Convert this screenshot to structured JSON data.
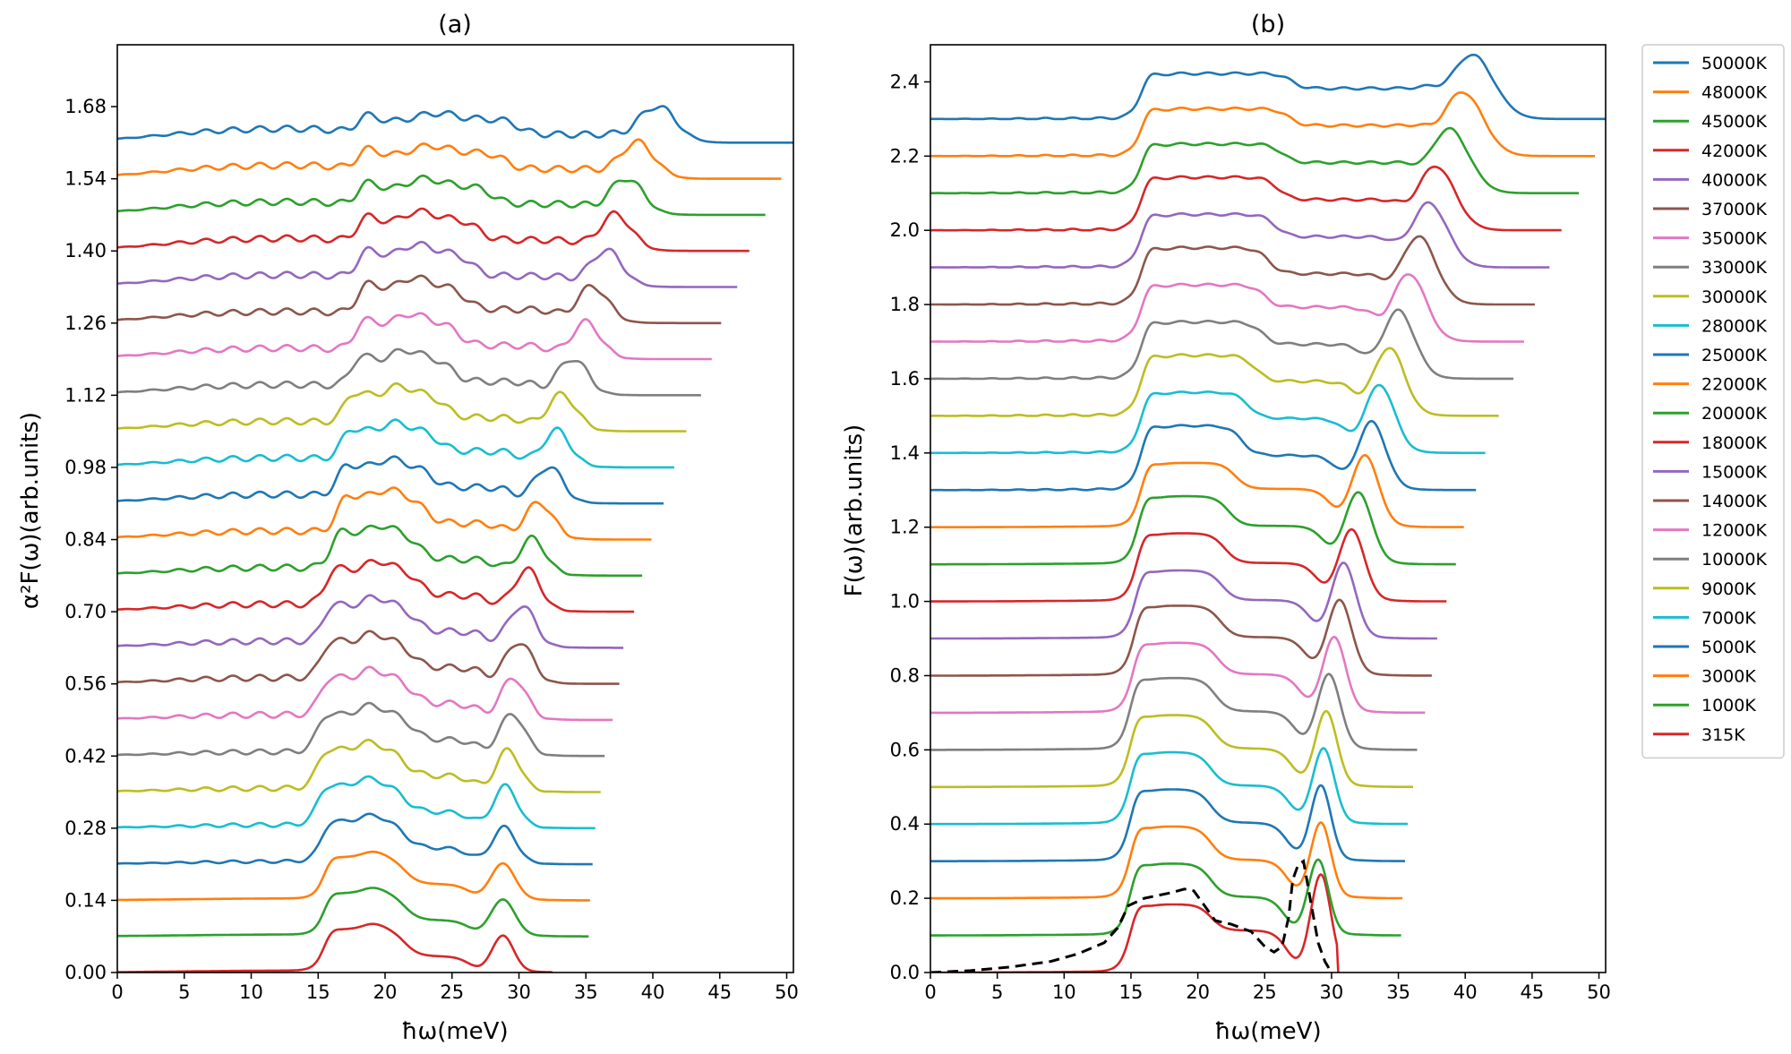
{
  "chart_data": [
    {
      "panel": "a",
      "type": "line",
      "title": "(a)",
      "xlabel": "ħω(meV)",
      "ylabel": "α²F(ω)(arb.units)",
      "xlim": [
        0,
        50.5
      ],
      "ylim": [
        0,
        1.8
      ],
      "xticks": [
        "0",
        "5",
        "10",
        "15",
        "20",
        "25",
        "30",
        "35",
        "40",
        "45",
        "50"
      ],
      "yticks": [
        "0.00",
        "0.14",
        "0.28",
        "0.42",
        "0.56",
        "0.70",
        "0.84",
        "0.98",
        "1.12",
        "1.26",
        "1.40",
        "1.54",
        "1.68"
      ],
      "offset_step": 0.07,
      "series": [
        {
          "name": "315K",
          "offset": 0.0,
          "end": 32.5,
          "peak": 28.8,
          "ph": 0.07,
          "pw": 0.8,
          "b1": 15.5,
          "b2": 21.5,
          "bh": 0.08,
          "dip": 0.03,
          "pre": 0.003,
          "fine": 0
        },
        {
          "name": "1000K",
          "offset": 0.07,
          "end": 35.2,
          "peak": 28.8,
          "ph": 0.07,
          "pw": 0.9,
          "b1": 15.5,
          "b2": 21.5,
          "bh": 0.08,
          "dip": 0.03,
          "pre": 0.003,
          "fine": 0
        },
        {
          "name": "3000K",
          "offset": 0.14,
          "end": 35.3,
          "peak": 28.8,
          "ph": 0.07,
          "pw": 0.9,
          "b1": 15.5,
          "b2": 21.5,
          "bh": 0.08,
          "dip": 0.03,
          "pre": 0.003,
          "fine": 0
        },
        {
          "name": "5000K",
          "offset": 0.21,
          "end": 35.5,
          "peak": 28.9,
          "ph": 0.07,
          "pw": 0.9,
          "b1": 15.3,
          "b2": 21.5,
          "bh": 0.08,
          "dip": 0.03,
          "pre": 0.005,
          "fine": 0.003
        },
        {
          "name": "7000K",
          "offset": 0.28,
          "end": 35.7,
          "peak": 29.0,
          "ph": 0.08,
          "pw": 0.9,
          "b1": 15.0,
          "b2": 21.5,
          "bh": 0.08,
          "dip": 0.03,
          "pre": 0.006,
          "fine": 0.004
        },
        {
          "name": "9000K",
          "offset": 0.35,
          "end": 36.1,
          "peak": 29.2,
          "ph": 0.08,
          "pw": 0.9,
          "b1": 15.0,
          "b2": 21.5,
          "bh": 0.08,
          "dip": 0.03,
          "pre": 0.007,
          "fine": 0.005
        },
        {
          "name": "10000K",
          "offset": 0.42,
          "end": 36.4,
          "peak": 29.5,
          "ph": 0.08,
          "pw": 0.95,
          "b1": 15.0,
          "b2": 22.0,
          "bh": 0.08,
          "dip": 0.03,
          "pre": 0.008,
          "fine": 0.005
        },
        {
          "name": "12000K",
          "offset": 0.49,
          "end": 37.0,
          "peak": 29.6,
          "ph": 0.08,
          "pw": 0.95,
          "b1": 15.2,
          "b2": 22.0,
          "bh": 0.08,
          "dip": 0.03,
          "pre": 0.01,
          "fine": 0.006
        },
        {
          "name": "14000K",
          "offset": 0.56,
          "end": 37.5,
          "peak": 30.0,
          "ph": 0.08,
          "pw": 1.0,
          "b1": 15.3,
          "b2": 22.0,
          "bh": 0.08,
          "dip": 0.03,
          "pre": 0.012,
          "fine": 0.006
        },
        {
          "name": "15000K",
          "offset": 0.63,
          "end": 37.8,
          "peak": 30.2,
          "ph": 0.08,
          "pw": 1.0,
          "b1": 15.4,
          "b2": 22.2,
          "bh": 0.08,
          "dip": 0.03,
          "pre": 0.013,
          "fine": 0.006
        },
        {
          "name": "18000K",
          "offset": 0.7,
          "end": 38.6,
          "peak": 30.6,
          "ph": 0.08,
          "pw": 1.0,
          "b1": 15.6,
          "b2": 22.5,
          "bh": 0.08,
          "dip": 0.03,
          "pre": 0.015,
          "fine": 0.006
        },
        {
          "name": "20000K",
          "offset": 0.77,
          "end": 39.2,
          "peak": 31.0,
          "ph": 0.07,
          "pw": 1.0,
          "b1": 16.0,
          "b2": 22.5,
          "bh": 0.08,
          "dip": 0.03,
          "pre": 0.016,
          "fine": 0.006
        },
        {
          "name": "22000K",
          "offset": 0.84,
          "end": 39.9,
          "peak": 31.5,
          "ph": 0.07,
          "pw": 1.05,
          "b1": 16.5,
          "b2": 23.0,
          "bh": 0.08,
          "dip": 0.03,
          "pre": 0.017,
          "fine": 0.006
        },
        {
          "name": "25000K",
          "offset": 0.91,
          "end": 40.8,
          "peak": 32.2,
          "ph": 0.07,
          "pw": 1.05,
          "b1": 16.5,
          "b2": 23.5,
          "bh": 0.07,
          "dip": 0.03,
          "pre": 0.018,
          "fine": 0.006
        },
        {
          "name": "28000K",
          "offset": 0.98,
          "end": 41.6,
          "peak": 32.8,
          "ph": 0.07,
          "pw": 1.05,
          "b1": 16.8,
          "b2": 24.0,
          "bh": 0.07,
          "dip": 0.03,
          "pre": 0.019,
          "fine": 0.006
        },
        {
          "name": "30000K",
          "offset": 1.05,
          "end": 42.5,
          "peak": 33.2,
          "ph": 0.07,
          "pw": 1.1,
          "b1": 17.0,
          "b2": 24.5,
          "bh": 0.07,
          "dip": 0.025,
          "pre": 0.02,
          "fine": 0.006
        },
        {
          "name": "33000K",
          "offset": 1.12,
          "end": 43.6,
          "peak": 34.0,
          "ph": 0.07,
          "pw": 1.1,
          "b1": 17.5,
          "b2": 25.0,
          "bh": 0.07,
          "dip": 0.025,
          "pre": 0.021,
          "fine": 0.006
        },
        {
          "name": "35000K",
          "offset": 1.19,
          "end": 44.4,
          "peak": 35.0,
          "ph": 0.07,
          "pw": 1.1,
          "b1": 17.8,
          "b2": 25.5,
          "bh": 0.07,
          "dip": 0.025,
          "pre": 0.022,
          "fine": 0.006
        },
        {
          "name": "37000K",
          "offset": 1.26,
          "end": 45.1,
          "peak": 35.5,
          "ph": 0.07,
          "pw": 1.15,
          "b1": 18.0,
          "b2": 26.0,
          "bh": 0.07,
          "dip": 0.025,
          "pre": 0.023,
          "fine": 0.006
        },
        {
          "name": "40000K",
          "offset": 1.33,
          "end": 46.3,
          "peak": 36.5,
          "ph": 0.07,
          "pw": 1.2,
          "b1": 18.0,
          "b2": 26.5,
          "bh": 0.065,
          "dip": 0.02,
          "pre": 0.024,
          "fine": 0.006
        },
        {
          "name": "42000K",
          "offset": 1.4,
          "end": 47.2,
          "peak": 37.2,
          "ph": 0.07,
          "pw": 1.2,
          "b1": 18.0,
          "b2": 27.0,
          "bh": 0.06,
          "dip": 0.02,
          "pre": 0.025,
          "fine": 0.006
        },
        {
          "name": "45000K",
          "offset": 1.47,
          "end": 48.4,
          "peak": 38.0,
          "ph": 0.07,
          "pw": 1.25,
          "b1": 18.0,
          "b2": 28.0,
          "bh": 0.055,
          "dip": 0.02,
          "pre": 0.026,
          "fine": 0.006
        },
        {
          "name": "48000K",
          "offset": 1.54,
          "end": 49.6,
          "peak": 38.8,
          "ph": 0.07,
          "pw": 1.3,
          "b1": 18.0,
          "b2": 29.0,
          "bh": 0.05,
          "dip": 0.018,
          "pre": 0.027,
          "fine": 0.006
        },
        {
          "name": "50000K",
          "offset": 1.61,
          "end": 50.5,
          "peak": 40.3,
          "ph": 0.07,
          "pw": 1.4,
          "b1": 18.0,
          "b2": 30.0,
          "bh": 0.045,
          "dip": 0.015,
          "pre": 0.028,
          "fine": 0.006
        }
      ]
    },
    {
      "panel": "b",
      "type": "line",
      "title": "(b)",
      "xlabel": "ħω(meV)",
      "ylabel": "F(ω)(arb.units)",
      "xlim": [
        0,
        50.5
      ],
      "ylim": [
        0,
        2.5
      ],
      "xticks": [
        "0",
        "5",
        "10",
        "15",
        "20",
        "25",
        "30",
        "35",
        "40",
        "45",
        "50"
      ],
      "yticks": [
        "0.0",
        "0.2",
        "0.4",
        "0.6",
        "0.8",
        "1.0",
        "1.2",
        "1.4",
        "1.6",
        "1.8",
        "2.0",
        "2.2",
        "2.4"
      ],
      "offset_step": 0.1,
      "legend": [
        "50000K",
        "48000K",
        "45000K",
        "42000K",
        "40000K",
        "37000K",
        "35000K",
        "33000K",
        "30000K",
        "28000K",
        "25000K",
        "22000K",
        "20000K",
        "18000K",
        "15000K",
        "14000K",
        "12000K",
        "10000K",
        "9000K",
        "7000K",
        "5000K",
        "3000K",
        "1000K",
        "315K"
      ],
      "legend_loc": "outside upper right",
      "dashed_reference": {
        "x": [
          0,
          3,
          6,
          9,
          11,
          13,
          14,
          14.8,
          16,
          18,
          19,
          19.7,
          20.5,
          21.3,
          22.5,
          24,
          25,
          25.7,
          26.3,
          26.8,
          27.1,
          27.5,
          27.9,
          28.4,
          29,
          29.5,
          30
        ],
        "y": [
          0,
          0.005,
          0.015,
          0.03,
          0.05,
          0.08,
          0.12,
          0.18,
          0.2,
          0.215,
          0.225,
          0.22,
          0.18,
          0.14,
          0.13,
          0.11,
          0.07,
          0.055,
          0.07,
          0.15,
          0.25,
          0.29,
          0.3,
          0.2,
          0.08,
          0.03,
          0.0
        ]
      },
      "series": [
        {
          "name": "315K",
          "offset": 0.0,
          "end": 30.5,
          "peak": 29.2,
          "ph": 0.26,
          "pw": 0.75,
          "b1": 15.0,
          "b2": 21.0,
          "bh": 0.18,
          "dip": 0.11,
          "pre": 0.0,
          "fine": 0
        },
        {
          "name": "1000K",
          "offset": 0.1,
          "end": 35.2,
          "peak": 29.0,
          "ph": 0.2,
          "pw": 0.75,
          "b1": 15.0,
          "b2": 21.0,
          "bh": 0.19,
          "dip": 0.1,
          "pre": 0.0,
          "fine": 0
        },
        {
          "name": "3000K",
          "offset": 0.2,
          "end": 35.3,
          "peak": 29.2,
          "ph": 0.2,
          "pw": 0.75,
          "b1": 15.0,
          "b2": 21.0,
          "bh": 0.19,
          "dip": 0.1,
          "pre": 0.0,
          "fine": 0
        },
        {
          "name": "5000K",
          "offset": 0.3,
          "end": 35.5,
          "peak": 29.2,
          "ph": 0.2,
          "pw": 0.75,
          "b1": 15.0,
          "b2": 21.0,
          "bh": 0.19,
          "dip": 0.1,
          "pre": 0.0,
          "fine": 0
        },
        {
          "name": "7000K",
          "offset": 0.4,
          "end": 35.7,
          "peak": 29.4,
          "ph": 0.2,
          "pw": 0.8,
          "b1": 15.0,
          "b2": 21.0,
          "bh": 0.19,
          "dip": 0.1,
          "pre": 0.0,
          "fine": 0
        },
        {
          "name": "9000K",
          "offset": 0.5,
          "end": 36.1,
          "peak": 29.6,
          "ph": 0.2,
          "pw": 0.8,
          "b1": 15.0,
          "b2": 21.2,
          "bh": 0.19,
          "dip": 0.1,
          "pre": 0.0,
          "fine": 0
        },
        {
          "name": "10000K",
          "offset": 0.6,
          "end": 36.4,
          "peak": 29.8,
          "ph": 0.2,
          "pw": 0.85,
          "b1": 15.0,
          "b2": 21.3,
          "bh": 0.19,
          "dip": 0.1,
          "pre": 0.0,
          "fine": 0
        },
        {
          "name": "12000K",
          "offset": 0.7,
          "end": 37.0,
          "peak": 30.2,
          "ph": 0.2,
          "pw": 0.85,
          "b1": 15.2,
          "b2": 21.5,
          "bh": 0.185,
          "dip": 0.1,
          "pre": 0.0,
          "fine": 0
        },
        {
          "name": "14000K",
          "offset": 0.8,
          "end": 37.5,
          "peak": 30.6,
          "ph": 0.2,
          "pw": 0.9,
          "b1": 15.3,
          "b2": 21.7,
          "bh": 0.185,
          "dip": 0.1,
          "pre": 0.0,
          "fine": 0
        },
        {
          "name": "15000K",
          "offset": 0.9,
          "end": 37.9,
          "peak": 30.9,
          "ph": 0.2,
          "pw": 0.9,
          "b1": 15.4,
          "b2": 21.8,
          "bh": 0.18,
          "dip": 0.1,
          "pre": 0.0,
          "fine": 0
        },
        {
          "name": "18000K",
          "offset": 1.0,
          "end": 38.6,
          "peak": 31.5,
          "ph": 0.19,
          "pw": 0.95,
          "b1": 15.5,
          "b2": 22.0,
          "bh": 0.18,
          "dip": 0.1,
          "pre": 0.0,
          "fine": 0
        },
        {
          "name": "20000K",
          "offset": 1.1,
          "end": 39.3,
          "peak": 32.0,
          "ph": 0.19,
          "pw": 1.0,
          "b1": 15.6,
          "b2": 22.3,
          "bh": 0.18,
          "dip": 0.1,
          "pre": 0.0,
          "fine": 0
        },
        {
          "name": "22000K",
          "offset": 1.2,
          "end": 39.9,
          "peak": 32.5,
          "ph": 0.19,
          "pw": 1.0,
          "b1": 15.8,
          "b2": 22.8,
          "bh": 0.17,
          "dip": 0.1,
          "pre": 0.0,
          "fine": 0
        },
        {
          "name": "25000K",
          "offset": 1.3,
          "end": 40.8,
          "peak": 33.0,
          "ph": 0.18,
          "pw": 1.05,
          "b1": 15.8,
          "b2": 23.3,
          "bh": 0.17,
          "dip": 0.09,
          "pre": 0.0,
          "fine": 0.002
        },
        {
          "name": "28000K",
          "offset": 1.4,
          "end": 41.5,
          "peak": 33.6,
          "ph": 0.18,
          "pw": 1.1,
          "b1": 15.8,
          "b2": 23.8,
          "bh": 0.16,
          "dip": 0.09,
          "pre": 0.0,
          "fine": 0.002
        },
        {
          "name": "30000K",
          "offset": 1.5,
          "end": 42.5,
          "peak": 34.3,
          "ph": 0.18,
          "pw": 1.15,
          "b1": 15.8,
          "b2": 24.3,
          "bh": 0.16,
          "dip": 0.09,
          "pre": 0.0,
          "fine": 0.003
        },
        {
          "name": "33000K",
          "offset": 1.6,
          "end": 43.6,
          "peak": 35.0,
          "ph": 0.18,
          "pw": 1.2,
          "b1": 15.8,
          "b2": 24.8,
          "bh": 0.15,
          "dip": 0.09,
          "pre": 0.0,
          "fine": 0.003
        },
        {
          "name": "35000K",
          "offset": 1.7,
          "end": 44.4,
          "peak": 35.8,
          "ph": 0.18,
          "pw": 1.25,
          "b1": 15.8,
          "b2": 25.0,
          "bh": 0.15,
          "dip": 0.09,
          "pre": 0.0,
          "fine": 0.003
        },
        {
          "name": "37000K",
          "offset": 1.8,
          "end": 45.2,
          "peak": 36.5,
          "ph": 0.18,
          "pw": 1.3,
          "b1": 15.8,
          "b2": 25.3,
          "bh": 0.15,
          "dip": 0.08,
          "pre": 0.0,
          "fine": 0.003
        },
        {
          "name": "40000K",
          "offset": 1.9,
          "end": 46.3,
          "peak": 37.3,
          "ph": 0.17,
          "pw": 1.35,
          "b1": 15.8,
          "b2": 25.8,
          "bh": 0.14,
          "dip": 0.08,
          "pre": 0.0,
          "fine": 0.003
        },
        {
          "name": "42000K",
          "offset": 2.0,
          "end": 47.2,
          "peak": 37.8,
          "ph": 0.17,
          "pw": 1.4,
          "b1": 15.8,
          "b2": 26.0,
          "bh": 0.14,
          "dip": 0.08,
          "pre": 0.0,
          "fine": 0.003
        },
        {
          "name": "45000K",
          "offset": 2.1,
          "end": 48.5,
          "peak": 38.8,
          "ph": 0.17,
          "pw": 1.45,
          "b1": 15.8,
          "b2": 26.3,
          "bh": 0.13,
          "dip": 0.08,
          "pre": 0.0,
          "fine": 0.003
        },
        {
          "name": "48000K",
          "offset": 2.2,
          "end": 49.7,
          "peak": 39.8,
          "ph": 0.17,
          "pw": 1.5,
          "b1": 15.8,
          "b2": 26.8,
          "bh": 0.125,
          "dip": 0.08,
          "pre": 0.0,
          "fine": 0.003
        },
        {
          "name": "50000K",
          "offset": 2.3,
          "end": 50.5,
          "peak": 40.5,
          "ph": 0.17,
          "pw": 1.6,
          "b1": 15.8,
          "b2": 27.0,
          "bh": 0.12,
          "dip": 0.08,
          "pre": 0.0,
          "fine": 0.003
        }
      ]
    }
  ],
  "colors": {
    "315K": "#d62728",
    "1000K": "#2ca02c",
    "3000K": "#ff7f0e",
    "5000K": "#1f77b4",
    "7000K": "#17becf",
    "9000K": "#bcbd22",
    "10000K": "#7f7f7f",
    "12000K": "#e377c2",
    "14000K": "#8c564b",
    "15000K": "#9467bd",
    "18000K": "#d62728",
    "20000K": "#2ca02c",
    "22000K": "#ff7f0e",
    "25000K": "#1f77b4",
    "28000K": "#17becf",
    "30000K": "#bcbd22",
    "33000K": "#7f7f7f",
    "35000K": "#e377c2",
    "37000K": "#8c564b",
    "40000K": "#9467bd",
    "42000K": "#d62728",
    "45000K": "#2ca02c",
    "48000K": "#ff7f0e",
    "50000K": "#1f77b4"
  },
  "dashed_color": "#000000"
}
